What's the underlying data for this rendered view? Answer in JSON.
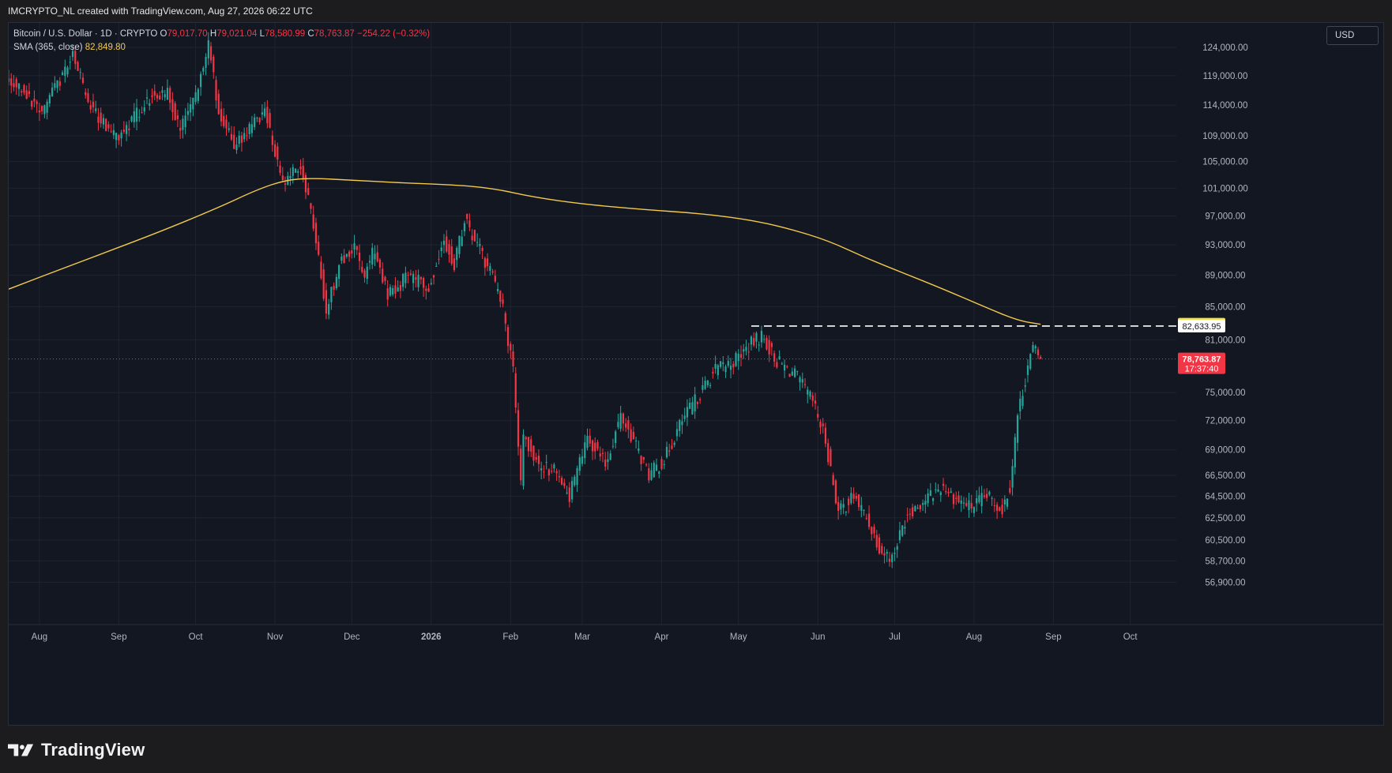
{
  "header": {
    "credit": "IMCRYPTO_NL created with TradingView.com, Aug 27, 2026 06:22 UTC"
  },
  "legend": {
    "symbol": "Bitcoin / U.S. Dollar · 1D · CRYPTO",
    "o_label": "O",
    "o_value": "79,017.70",
    "h_label": "H",
    "h_value": "79,021.04",
    "l_label": "L",
    "l_value": "78,580.99",
    "c_label": "C",
    "c_value": "78,763.87",
    "change": "−254.22 (−0.32%)",
    "sma_label": "SMA (365, close)",
    "sma_value": "82,849.80"
  },
  "toolbar": {
    "currency": "USD"
  },
  "footer": {
    "brand": "TradingView"
  },
  "colors": {
    "up": "#26a69a",
    "down": "#f23645",
    "sma": "#f2c94c",
    "background": "#131722",
    "grid": "#202431",
    "text": "#b2b5be"
  },
  "chart_data": {
    "type": "candlestick",
    "scale": "log",
    "ylim": [
      53500,
      128500
    ],
    "y_ticks": [
      {
        "value": 124000,
        "label": "124,000.00"
      },
      {
        "value": 119000,
        "label": "119,000.00"
      },
      {
        "value": 114000,
        "label": "114,000.00"
      },
      {
        "value": 109000,
        "label": "109,000.00"
      },
      {
        "value": 105000,
        "label": "105,000.00"
      },
      {
        "value": 101000,
        "label": "101,000.00"
      },
      {
        "value": 97000,
        "label": "97,000.00"
      },
      {
        "value": 93000,
        "label": "93,000.00"
      },
      {
        "value": 89000,
        "label": "89,000.00"
      },
      {
        "value": 85000,
        "label": "85,000.00"
      },
      {
        "value": 81000,
        "label": "81,000.00"
      },
      {
        "value": 75000,
        "label": "75,000.00"
      },
      {
        "value": 72000,
        "label": "72,000.00"
      },
      {
        "value": 69000,
        "label": "69,000.00"
      },
      {
        "value": 66500,
        "label": "66,500.00"
      },
      {
        "value": 64500,
        "label": "64,500.00"
      },
      {
        "value": 62500,
        "label": "62,500.00"
      },
      {
        "value": 60500,
        "label": "60,500.00"
      },
      {
        "value": 58700,
        "label": "58,700.00"
      },
      {
        "value": 56900,
        "label": "56,900.00"
      }
    ],
    "x_ticks": [
      {
        "label": "Aug",
        "date": "2025-08-01"
      },
      {
        "label": "Sep",
        "date": "2025-09-01"
      },
      {
        "label": "Oct",
        "date": "2025-10-01"
      },
      {
        "label": "Nov",
        "date": "2025-11-01"
      },
      {
        "label": "Dec",
        "date": "2025-12-01"
      },
      {
        "label": "2026",
        "date": "2026-01-01"
      },
      {
        "label": "Feb",
        "date": "2026-02-01"
      },
      {
        "label": "Mar",
        "date": "2026-03-01"
      },
      {
        "label": "Apr",
        "date": "2026-04-01"
      },
      {
        "label": "May",
        "date": "2026-05-01"
      },
      {
        "label": "Jun",
        "date": "2026-06-01"
      },
      {
        "label": "Jul",
        "date": "2026-07-01"
      },
      {
        "label": "Aug",
        "date": "2026-08-01"
      },
      {
        "label": "Sep",
        "date": "2026-09-01"
      },
      {
        "label": "Oct",
        "date": "2026-10-01"
      }
    ],
    "x_range": [
      "2025-07-20",
      "2026-10-19"
    ],
    "last_date": "2026-08-27",
    "price_anchors": [
      [
        "2025-07-20",
        118500
      ],
      [
        "2025-07-26",
        116000
      ],
      [
        "2025-08-02",
        113000
      ],
      [
        "2025-08-08",
        117500
      ],
      [
        "2025-08-14",
        122500
      ],
      [
        "2025-08-20",
        114500
      ],
      [
        "2025-08-28",
        110000
      ],
      [
        "2025-09-01",
        108500
      ],
      [
        "2025-09-06",
        111500
      ],
      [
        "2025-09-13",
        115500
      ],
      [
        "2025-09-20",
        116000
      ],
      [
        "2025-09-25",
        110000
      ],
      [
        "2025-09-30",
        114000
      ],
      [
        "2025-10-06",
        124500
      ],
      [
        "2025-10-10",
        113000
      ],
      [
        "2025-10-16",
        107500
      ],
      [
        "2025-10-21",
        109500
      ],
      [
        "2025-10-28",
        113500
      ],
      [
        "2025-11-04",
        101500
      ],
      [
        "2025-11-11",
        104500
      ],
      [
        "2025-11-17",
        94000
      ],
      [
        "2025-11-21",
        84500
      ],
      [
        "2025-11-26",
        90500
      ],
      [
        "2025-12-02",
        92500
      ],
      [
        "2025-12-06",
        89000
      ],
      [
        "2025-12-10",
        92500
      ],
      [
        "2025-12-15",
        86500
      ],
      [
        "2025-12-22",
        88500
      ],
      [
        "2025-12-31",
        87800
      ],
      [
        "2026-01-06",
        93500
      ],
      [
        "2026-01-10",
        90500
      ],
      [
        "2026-01-14",
        96500
      ],
      [
        "2026-01-19",
        93000
      ],
      [
        "2026-01-25",
        88500
      ],
      [
        "2026-01-29",
        84500
      ],
      [
        "2026-02-02",
        77500
      ],
      [
        "2026-02-05",
        65500
      ],
      [
        "2026-02-06",
        70500
      ],
      [
        "2026-02-12",
        67500
      ],
      [
        "2026-02-18",
        67000
      ],
      [
        "2026-02-24",
        64500
      ],
      [
        "2026-03-03",
        70500
      ],
      [
        "2026-03-10",
        67500
      ],
      [
        "2026-03-16",
        72500
      ],
      [
        "2026-03-20",
        70500
      ],
      [
        "2026-03-27",
        66500
      ],
      [
        "2026-04-02",
        68000
      ],
      [
        "2026-04-08",
        71500
      ],
      [
        "2026-04-15",
        74500
      ],
      [
        "2026-04-22",
        77500
      ],
      [
        "2026-04-29",
        78500
      ],
      [
        "2026-05-06",
        80500
      ],
      [
        "2026-05-10",
        81500
      ],
      [
        "2026-05-16",
        78500
      ],
      [
        "2026-05-23",
        77000
      ],
      [
        "2026-05-30",
        74000
      ],
      [
        "2026-06-04",
        70000
      ],
      [
        "2026-06-09",
        63000
      ],
      [
        "2026-06-15",
        64500
      ],
      [
        "2026-06-20",
        62500
      ],
      [
        "2026-06-26",
        59500
      ],
      [
        "2026-06-30",
        59000
      ],
      [
        "2026-07-06",
        63000
      ],
      [
        "2026-07-12",
        64000
      ],
      [
        "2026-07-20",
        65500
      ],
      [
        "2026-07-25",
        64200
      ],
      [
        "2026-07-31",
        63500
      ],
      [
        "2026-08-06",
        64500
      ],
      [
        "2026-08-12",
        63300
      ],
      [
        "2026-08-15",
        65500
      ],
      [
        "2026-08-18",
        72500
      ],
      [
        "2026-08-22",
        78000
      ],
      [
        "2026-08-24",
        80000
      ],
      [
        "2026-08-27",
        78763.87
      ]
    ],
    "sma_series": {
      "name": "SMA (365, close)",
      "points": [
        [
          "2025-07-20",
          87200
        ],
        [
          "2025-08-15",
          90500
        ],
        [
          "2025-09-15",
          94500
        ],
        [
          "2025-10-10",
          98200
        ],
        [
          "2025-10-25",
          100800
        ],
        [
          "2025-11-05",
          102200
        ],
        [
          "2025-11-15",
          102500
        ],
        [
          "2025-12-01",
          102200
        ],
        [
          "2025-12-20",
          101800
        ],
        [
          "2026-01-10",
          101500
        ],
        [
          "2026-01-25",
          101000
        ],
        [
          "2026-02-10",
          99700
        ],
        [
          "2026-03-01",
          98700
        ],
        [
          "2026-03-25",
          97900
        ],
        [
          "2026-04-15",
          97400
        ],
        [
          "2026-05-05",
          96500
        ],
        [
          "2026-05-20",
          95300
        ],
        [
          "2026-06-05",
          93600
        ],
        [
          "2026-06-20",
          91200
        ],
        [
          "2026-07-05",
          89200
        ],
        [
          "2026-07-20",
          87200
        ],
        [
          "2026-08-05",
          85000
        ],
        [
          "2026-08-18",
          83300
        ],
        [
          "2026-08-27",
          82849.8
        ]
      ]
    },
    "resistance_line": {
      "value": 82633.95,
      "label": "82,633.95",
      "from": "2026-05-06",
      "style": "dashed"
    },
    "price_labels": {
      "sma": {
        "value": 82849.8,
        "label": "82,849.80"
      },
      "last": {
        "value": 78763.87,
        "label": "78,763.87",
        "countdown": "17:37:40"
      }
    }
  }
}
